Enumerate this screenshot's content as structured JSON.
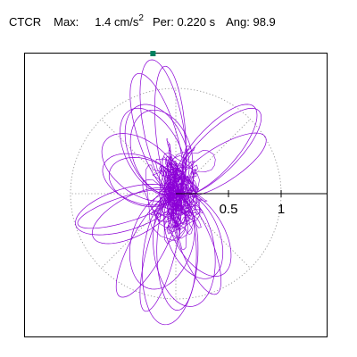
{
  "header": {
    "label": "CTCR",
    "max_label": "Max:",
    "max_value": "1.4 cm/s",
    "max_exp": "2",
    "per_label": "Per:",
    "per_value": "0.220 s",
    "ang_label": "Ang:",
    "ang_value": "98.9"
  },
  "chart_data": {
    "type": "polar-orbit",
    "title": "",
    "radial_ticks": [
      {
        "value": 0.5,
        "label": "0.5"
      },
      {
        "value": 1,
        "label": "1"
      }
    ],
    "radial_max": 1.4,
    "orbit_color": "#8B00D6",
    "marker_color": "#008060",
    "grid": "dotted",
    "seed": 17,
    "lobes": [
      {
        "angle": 98.9,
        "reach": 1.35
      },
      {
        "angle": 40,
        "reach": 1.15
      },
      {
        "angle": 300,
        "reach": 1.05
      },
      {
        "angle": 250,
        "reach": 1.15
      },
      {
        "angle": 200,
        "reach": 0.95
      },
      {
        "angle": 150,
        "reach": 0.85
      },
      {
        "angle": 115,
        "reach": 1.05
      },
      {
        "angle": 275,
        "reach": 1.25
      }
    ]
  }
}
